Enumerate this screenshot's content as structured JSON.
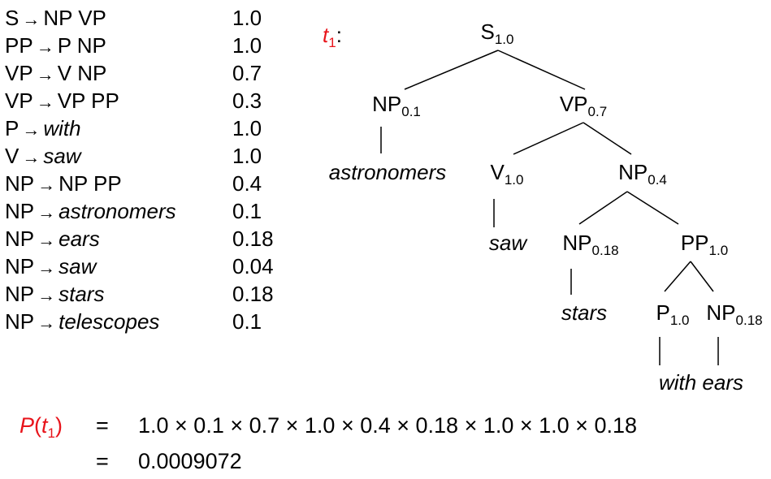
{
  "grammar": {
    "rules": [
      {
        "lhs": "S",
        "rhs": "NP VP",
        "rhs_italic": false,
        "prob": "1.0"
      },
      {
        "lhs": "PP",
        "rhs": "P NP",
        "rhs_italic": false,
        "prob": "1.0"
      },
      {
        "lhs": "VP",
        "rhs": "V NP",
        "rhs_italic": false,
        "prob": "0.7"
      },
      {
        "lhs": "VP",
        "rhs": "VP PP",
        "rhs_italic": false,
        "prob": "0.3"
      },
      {
        "lhs": "P",
        "rhs": "with",
        "rhs_italic": true,
        "prob": "1.0"
      },
      {
        "lhs": "V",
        "rhs": "saw",
        "rhs_italic": true,
        "prob": "1.0"
      },
      {
        "lhs": "NP",
        "rhs": "NP PP",
        "rhs_italic": false,
        "prob": "0.4"
      },
      {
        "lhs": "NP",
        "rhs": "astronomers",
        "rhs_italic": true,
        "prob": "0.1"
      },
      {
        "lhs": "NP",
        "rhs": "ears",
        "rhs_italic": true,
        "prob": "0.18"
      },
      {
        "lhs": "NP",
        "rhs": "saw",
        "rhs_italic": true,
        "prob": "0.04"
      },
      {
        "lhs": "NP",
        "rhs": "stars",
        "rhs_italic": true,
        "prob": "0.18"
      },
      {
        "lhs": "NP",
        "rhs": "telescopes",
        "rhs_italic": true,
        "prob": "0.1"
      }
    ],
    "arrow": "→"
  },
  "tree": {
    "label": "t",
    "label_sub": "1",
    "label_suffix": ":",
    "nodes": {
      "s": {
        "cat": "S",
        "prob": "1.0"
      },
      "np_ast": {
        "cat": "NP",
        "prob": "0.1"
      },
      "vp": {
        "cat": "VP",
        "prob": "0.7"
      },
      "v": {
        "cat": "V",
        "prob": "1.0"
      },
      "np_big": {
        "cat": "NP",
        "prob": "0.4"
      },
      "np_stars": {
        "cat": "NP",
        "prob": "0.18"
      },
      "pp": {
        "cat": "PP",
        "prob": "1.0"
      },
      "p": {
        "cat": "P",
        "prob": "1.0"
      },
      "np_ears": {
        "cat": "NP",
        "prob": "0.18"
      }
    },
    "words": {
      "astronomers": "astronomers",
      "saw": "saw",
      "stars": "stars",
      "with_ears": "with ears"
    }
  },
  "equation": {
    "lhs_fn": "P",
    "lhs_arg": "t",
    "lhs_arg_sub": "1",
    "eq_sign": "=",
    "product": "1.0 × 0.1 × 0.7 × 1.0 × 0.4 × 0.18 × 1.0 × 1.0 × 0.18",
    "result": "0.0009072"
  },
  "colors": {
    "highlight": "#e8141b",
    "text": "#000000"
  }
}
